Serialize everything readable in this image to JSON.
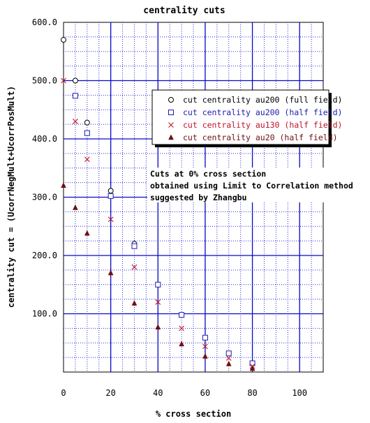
{
  "chart_data": {
    "type": "scatter",
    "title": "centrality cuts",
    "xlabel": "% cross section",
    "ylabel": "centrality  cut = (UcorrNegMult+UcorrPosMult)",
    "xlim": [
      0,
      110
    ],
    "ylim": [
      0,
      600
    ],
    "x_ticks": [
      0,
      20,
      40,
      60,
      80,
      100
    ],
    "x_tick_labels": [
      "0",
      "20",
      "40",
      "60",
      "80",
      "100"
    ],
    "x_minor_step": 5,
    "y_ticks": [
      100,
      200,
      300,
      400,
      500,
      600
    ],
    "y_tick_labels": [
      "100.0",
      "200.0",
      "300.0",
      "400.0",
      "500.0",
      "600.0"
    ],
    "y_minor_step": 25,
    "grid": true,
    "legend_position": "upper-right",
    "series": [
      {
        "name": "cut centrality au200 (full field)",
        "marker": "circle",
        "color": "#000000",
        "points": [
          [
            0,
            570
          ],
          [
            5,
            500
          ],
          [
            10,
            428
          ],
          [
            20,
            311
          ],
          [
            30,
            220
          ]
        ]
      },
      {
        "name": "cut centrality au200 (half field)",
        "marker": "square",
        "color": "#1c1cb0",
        "points": [
          [
            5,
            474
          ],
          [
            10,
            410
          ],
          [
            20,
            302
          ],
          [
            30,
            216
          ],
          [
            40,
            150
          ],
          [
            50,
            98
          ],
          [
            60,
            59
          ],
          [
            70,
            32
          ],
          [
            80,
            15
          ]
        ]
      },
      {
        "name": "cut centrality au130 (half field)",
        "marker": "x",
        "color": "#c0142c",
        "points": [
          [
            0,
            500
          ],
          [
            5,
            430
          ],
          [
            10,
            365
          ],
          [
            20,
            262
          ],
          [
            30,
            180
          ],
          [
            40,
            120
          ],
          [
            50,
            75
          ],
          [
            60,
            44
          ],
          [
            70,
            24
          ],
          [
            80,
            10
          ]
        ]
      },
      {
        "name": "cut centrality au20 (half field)",
        "marker": "triangle",
        "color": "#6e1010",
        "points": [
          [
            0,
            320
          ],
          [
            5,
            282
          ],
          [
            10,
            238
          ],
          [
            20,
            170
          ],
          [
            30,
            118
          ],
          [
            40,
            77
          ],
          [
            50,
            48
          ],
          [
            60,
            27
          ],
          [
            70,
            14
          ],
          [
            80,
            6
          ]
        ]
      }
    ],
    "annotation": [
      "Cuts at 0% cross section",
      "obtained using Limit to Correlation method",
      "suggested by Zhangbu"
    ]
  }
}
